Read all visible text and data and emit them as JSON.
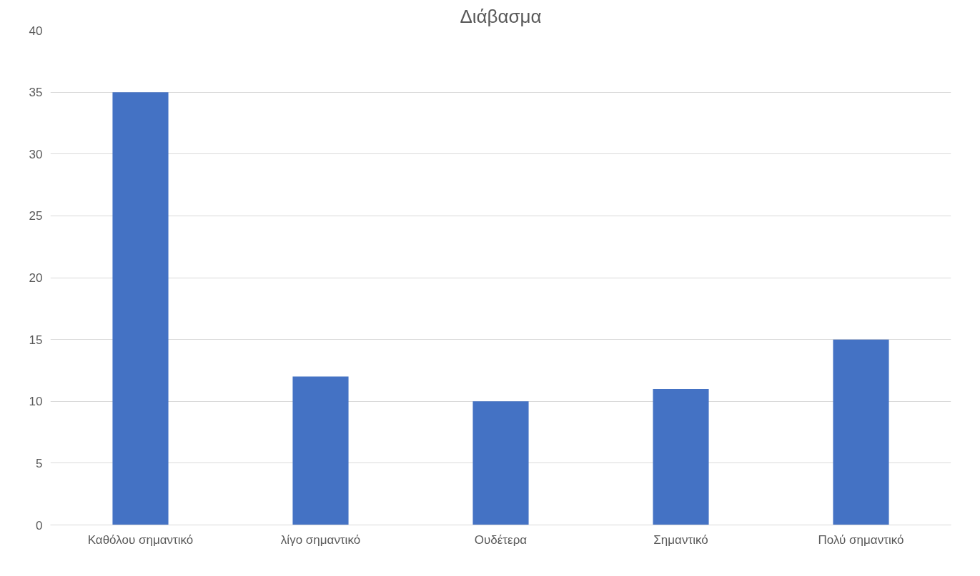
{
  "chart_data": {
    "type": "bar",
    "title": "Διάβασμα",
    "categories": [
      "Καθόλου σημαντικό",
      "λίγο σημαντικό",
      "Ουδέτερα",
      "Σημαντικό",
      "Πολύ σημαντικό"
    ],
    "values": [
      35,
      12,
      10,
      11,
      15
    ],
    "color": "#4472c4",
    "ylim": [
      0,
      40
    ],
    "yticks": [
      0,
      5,
      10,
      15,
      20,
      25,
      30,
      35,
      40
    ],
    "grid": "y"
  }
}
